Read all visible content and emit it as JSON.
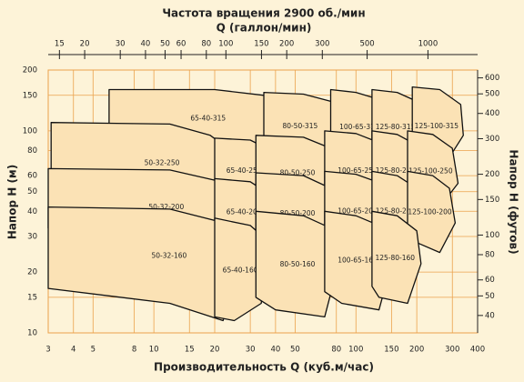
{
  "chart_data": {
    "type": "polygon",
    "title": "Частота вращения 2900 об./мин",
    "x2_label": "Q (галлон/мин)",
    "x_label": "Производительность Q (куб.м/час)",
    "y_label": "Напор H (м)",
    "y2_label": "Напор H (футов)",
    "xscale": "log",
    "yscale": "log",
    "grid": true,
    "grid_color": "#eba24c",
    "tile_color": "#fbe2b5",
    "background": "#fdf3d8",
    "xlim": [
      3,
      400
    ],
    "xticks": [
      3,
      4,
      5,
      8,
      10,
      15,
      20,
      30,
      40,
      50,
      80,
      100,
      150,
      200,
      300,
      400
    ],
    "ylim": [
      10,
      200
    ],
    "yticks": [
      10,
      15,
      20,
      30,
      40,
      50,
      60,
      80,
      100,
      150,
      200
    ],
    "x2lim": [
      13.2,
      1761
    ],
    "x2ticks": [
      15,
      20,
      30,
      40,
      50,
      60,
      80,
      100,
      150,
      200,
      300,
      500,
      1000
    ],
    "y2lim": [
      32.8,
      656
    ],
    "y2ticks": [
      40,
      50,
      60,
      80,
      100,
      150,
      200,
      300,
      400,
      500,
      600
    ],
    "tiles": [
      {
        "name": "65-40-315",
        "q": [
          6,
          20,
          35,
          38,
          36,
          22,
          6
        ],
        "h": [
          160,
          160,
          150,
          120,
          85,
          75,
          90
        ]
      },
      {
        "name": "80-50-315",
        "q": [
          35,
          55,
          75,
          82,
          70,
          40,
          35
        ],
        "h": [
          155,
          152,
          140,
          90,
          72,
          78,
          85
        ]
      },
      {
        "name": "100-65-315",
        "q": [
          75,
          100,
          140,
          150,
          130,
          85,
          75
        ],
        "h": [
          160,
          155,
          140,
          90,
          70,
          75,
          80
        ]
      },
      {
        "name": "125-80-315",
        "q": [
          120,
          160,
          200,
          215,
          180,
          130,
          120
        ],
        "h": [
          160,
          155,
          140,
          90,
          70,
          75,
          80
        ]
      },
      {
        "name": "125-100-315",
        "q": [
          190,
          260,
          330,
          340,
          280,
          210,
          190
        ],
        "h": [
          165,
          160,
          135,
          95,
          70,
          75,
          80
        ]
      },
      {
        "name": "50-32-250",
        "q": [
          3.1,
          12,
          19,
          24,
          22,
          18,
          10,
          3.1
        ],
        "h": [
          110,
          108,
          95,
          80,
          50,
          46,
          48,
          52
        ]
      },
      {
        "name": "65-40-250",
        "q": [
          20,
          30,
          38,
          37,
          28,
          20
        ],
        "h": [
          92,
          90,
          80,
          48,
          44,
          46
        ]
      },
      {
        "name": "80-50-250",
        "q": [
          32,
          55,
          75,
          80,
          70,
          40,
          32
        ],
        "h": [
          95,
          93,
          82,
          52,
          42,
          45,
          48
        ]
      },
      {
        "name": "100-65-250",
        "q": [
          70,
          100,
          140,
          150,
          130,
          85,
          70
        ],
        "h": [
          100,
          97,
          85,
          55,
          42,
          45,
          48
        ]
      },
      {
        "name": "125-80-250",
        "q": [
          120,
          160,
          200,
          215,
          180,
          130,
          120
        ],
        "h": [
          100,
          96,
          85,
          55,
          42,
          45,
          48
        ]
      },
      {
        "name": "125-100-250",
        "q": [
          180,
          240,
          300,
          320,
          260,
          200,
          180
        ],
        "h": [
          100,
          96,
          82,
          55,
          42,
          45,
          48
        ]
      },
      {
        "name": "50-32-200",
        "q": [
          3,
          12,
          20,
          25,
          24,
          20,
          12,
          3
        ],
        "h": [
          65,
          64,
          57,
          50,
          30,
          27,
          30,
          33
        ]
      },
      {
        "name": "65-40-200",
        "q": [
          20,
          30,
          38,
          37,
          28,
          20
        ],
        "h": [
          58,
          56,
          48,
          30,
          28,
          29
        ]
      },
      {
        "name": "80-50-200",
        "q": [
          32,
          55,
          75,
          80,
          70,
          40,
          32
        ],
        "h": [
          62,
          60,
          52,
          33,
          25,
          28,
          30
        ]
      },
      {
        "name": "100-65-200",
        "q": [
          70,
          100,
          140,
          150,
          130,
          85,
          70
        ],
        "h": [
          63,
          61,
          54,
          35,
          26,
          28,
          30
        ]
      },
      {
        "name": "125-80-200",
        "q": [
          120,
          160,
          200,
          215,
          180,
          130,
          120
        ],
        "h": [
          63,
          60,
          52,
          35,
          26,
          29,
          31
        ]
      },
      {
        "name": "125-100-200",
        "q": [
          180,
          240,
          290,
          310,
          260,
          200,
          180
        ],
        "h": [
          63,
          60,
          52,
          35,
          25,
          28,
          31
        ]
      },
      {
        "name": "50-32-160",
        "q": [
          3,
          12,
          20,
          27,
          26,
          22,
          12,
          3
        ],
        "h": [
          42,
          41,
          36,
          33,
          20,
          11.5,
          14,
          16.6
        ]
      },
      {
        "name": "65-40-160",
        "q": [
          20,
          30,
          36,
          34,
          25,
          20
        ],
        "h": [
          37,
          34,
          29,
          14,
          11.5,
          12
        ]
      },
      {
        "name": "80-50-160",
        "q": [
          32,
          55,
          75,
          80,
          70,
          40,
          32
        ],
        "h": [
          40,
          38,
          33,
          20,
          12,
          13,
          15
        ]
      },
      {
        "name": "100-65-160",
        "q": [
          70,
          100,
          140,
          150,
          130,
          85,
          70
        ],
        "h": [
          40,
          38,
          33,
          22,
          13,
          14,
          16
        ]
      },
      {
        "name": "125-80-160",
        "q": [
          120,
          160,
          200,
          210,
          180,
          130,
          120
        ],
        "h": [
          40,
          38,
          32,
          22,
          14,
          15,
          17
        ]
      }
    ]
  }
}
